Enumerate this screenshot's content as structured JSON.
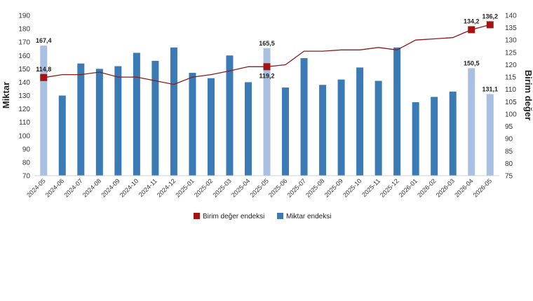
{
  "chart_data": {
    "type": "bar",
    "categories": [
      "2024-05",
      "2024-06",
      "2024-07",
      "2024-08",
      "2024-09",
      "2024-10",
      "2024-11",
      "2024-12",
      "2025-01",
      "2025-02",
      "2025-03",
      "2025-04",
      "2025-05",
      "2025-06",
      "2025-07",
      "2025-08",
      "2025-09",
      "2025-10",
      "2025-11",
      "2025-12",
      "2026-01",
      "2026-02",
      "2026-03",
      "2026-04",
      "2026-05"
    ],
    "ylabel": "Miktar",
    "y2label": "Birim değer",
    "ylim": [
      70,
      190
    ],
    "y2lim": [
      75,
      140
    ],
    "yticks": [
      70,
      80,
      90,
      100,
      110,
      120,
      130,
      140,
      150,
      160,
      170,
      180,
      190
    ],
    "y2ticks": [
      75,
      80,
      85,
      90,
      95,
      100,
      105,
      110,
      115,
      120,
      125,
      130,
      135,
      140
    ],
    "grid": false,
    "legend_position": "bottom",
    "series": [
      {
        "name": "Miktar endeksi",
        "type": "bar",
        "axis": "left",
        "color": "#3a7bb6",
        "highlight_color": "#a9c0e3",
        "highlighted": [
          "2024-05",
          "2025-05",
          "2026-04",
          "2026-05"
        ],
        "values": [
          167.4,
          130,
          154,
          150,
          152,
          162,
          156,
          166,
          147,
          143,
          160,
          140,
          165.5,
          136,
          158,
          138,
          142,
          151,
          141,
          166,
          125,
          129,
          133,
          150.5,
          131.1
        ]
      },
      {
        "name": "Birim değer endeksi",
        "type": "line",
        "axis": "right",
        "color": "#8b1a1a",
        "marker_color": "#a31515",
        "marked": [
          "2024-05",
          "2025-05",
          "2026-04",
          "2026-05"
        ],
        "values": [
          114.8,
          116,
          116,
          117,
          115,
          115,
          113.5,
          112,
          115,
          116,
          117.5,
          119.2,
          119.2,
          120,
          125.5,
          125.5,
          126,
          126,
          127,
          126,
          130,
          130.5,
          131,
          134.2,
          136.2
        ]
      }
    ],
    "data_labels": {
      "bars": [
        {
          "category": "2024-05",
          "text": "167,4"
        },
        {
          "category": "2025-05",
          "text": "165,5"
        },
        {
          "category": "2026-04",
          "text": "150,5"
        },
        {
          "category": "2026-05",
          "text": "131,1"
        }
      ],
      "line": [
        {
          "category": "2024-05",
          "text": "114,8"
        },
        {
          "category": "2025-05",
          "text": "119,2"
        },
        {
          "category": "2026-04",
          "text": "134,2"
        },
        {
          "category": "2026-05",
          "text": "136,2"
        }
      ]
    },
    "legend": [
      "Birim değer endeksi",
      "Miktar endeksi"
    ]
  }
}
